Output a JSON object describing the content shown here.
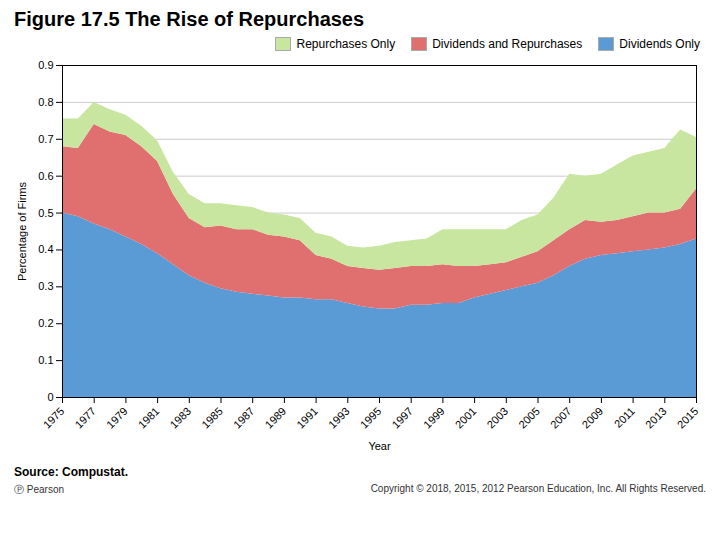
{
  "chart_data": {
    "type": "area",
    "title": "Figure 17.5 The Rise of Repurchases",
    "xlabel": "Year",
    "ylabel": "Percentage of Firms",
    "annotations": [
      "Source: Compustat.",
      "Ⓟ Pearson",
      "Copyright © 2018, 2015, 2012 Pearson Education, Inc. All Rights Reserved."
    ],
    "x": [
      1975,
      1976,
      1977,
      1978,
      1979,
      1980,
      1981,
      1982,
      1983,
      1984,
      1985,
      1986,
      1987,
      1988,
      1989,
      1990,
      1991,
      1992,
      1993,
      1994,
      1995,
      1996,
      1997,
      1998,
      1999,
      2000,
      2001,
      2002,
      2003,
      2004,
      2005,
      2006,
      2007,
      2008,
      2009,
      2010,
      2011,
      2012,
      2013,
      2014,
      2015
    ],
    "series": [
      {
        "name": "Dividends Only",
        "color": "#5b9bd5",
        "values": [
          0.5,
          0.49,
          0.47,
          0.455,
          0.435,
          0.415,
          0.39,
          0.36,
          0.33,
          0.31,
          0.295,
          0.285,
          0.28,
          0.275,
          0.27,
          0.27,
          0.265,
          0.265,
          0.255,
          0.245,
          0.24,
          0.24,
          0.25,
          0.25,
          0.255,
          0.255,
          0.27,
          0.28,
          0.29,
          0.3,
          0.31,
          0.33,
          0.355,
          0.375,
          0.385,
          0.39,
          0.395,
          0.4,
          0.405,
          0.415,
          0.43
        ]
      },
      {
        "name": "Dividends and Repurchases",
        "color": "#e07070",
        "values": [
          0.18,
          0.185,
          0.27,
          0.265,
          0.275,
          0.265,
          0.25,
          0.19,
          0.155,
          0.15,
          0.17,
          0.17,
          0.175,
          0.165,
          0.165,
          0.155,
          0.12,
          0.11,
          0.1,
          0.105,
          0.105,
          0.11,
          0.105,
          0.105,
          0.105,
          0.1,
          0.085,
          0.08,
          0.075,
          0.08,
          0.085,
          0.095,
          0.1,
          0.105,
          0.09,
          0.09,
          0.095,
          0.1,
          0.095,
          0.095,
          0.135
        ]
      },
      {
        "name": "Repurchases Only",
        "color": "#c8e6a0",
        "values": [
          0.075,
          0.08,
          0.06,
          0.06,
          0.055,
          0.055,
          0.055,
          0.06,
          0.065,
          0.065,
          0.06,
          0.065,
          0.06,
          0.06,
          0.06,
          0.06,
          0.06,
          0.06,
          0.055,
          0.055,
          0.065,
          0.07,
          0.07,
          0.075,
          0.095,
          0.1,
          0.1,
          0.095,
          0.09,
          0.1,
          0.1,
          0.115,
          0.15,
          0.12,
          0.13,
          0.15,
          0.165,
          0.165,
          0.175,
          0.215,
          0.14
        ]
      }
    ],
    "stacked": true,
    "xlim": [
      1975,
      2015
    ],
    "xticks": [
      1975,
      1977,
      1979,
      1981,
      1983,
      1985,
      1987,
      1989,
      1991,
      1993,
      1995,
      1997,
      1999,
      2001,
      2003,
      2005,
      2007,
      2009,
      2011,
      2013,
      2015
    ],
    "ylim": [
      0,
      0.9
    ],
    "yticks": [
      0,
      0.1,
      0.2,
      0.3,
      0.4,
      0.5,
      0.6,
      0.7,
      0.8,
      0.9
    ],
    "grid": "y",
    "legend": "upper right"
  }
}
